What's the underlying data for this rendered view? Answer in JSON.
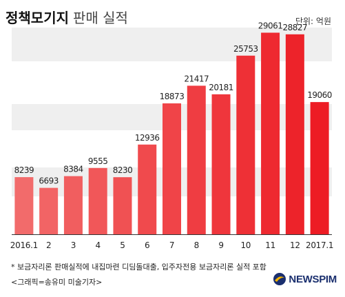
{
  "header": {
    "title_bold": "정책모기지",
    "title_light": "판매 실적",
    "unit": "단위: 억원"
  },
  "chart_data": {
    "type": "bar",
    "title": "정책모기지 판매 실적",
    "xlabel": "",
    "ylabel": "",
    "unit": "억원",
    "categories": [
      "2016.1",
      "2",
      "3",
      "4",
      "5",
      "6",
      "7",
      "8",
      "9",
      "10",
      "11",
      "12",
      "2017.1"
    ],
    "values": [
      8239,
      6693,
      8384,
      9555,
      8230,
      12936,
      18873,
      21417,
      20181,
      25753,
      29061,
      28827,
      19060
    ],
    "ylim": [
      0,
      30000
    ],
    "grid": false,
    "colors": {
      "bar_light": "#f26b6b",
      "bar_dark": "#ed1c24",
      "band": "#efefef",
      "axis": "#333333"
    }
  },
  "footer": {
    "footnote": "* 보금자리론 판매실적에 내집마련 디딤돌대출, 입주자전용 보금자리론 실적 포함",
    "credit": "<그래픽=송유미 미술기자>",
    "logo_text": "NEWSPIM"
  }
}
